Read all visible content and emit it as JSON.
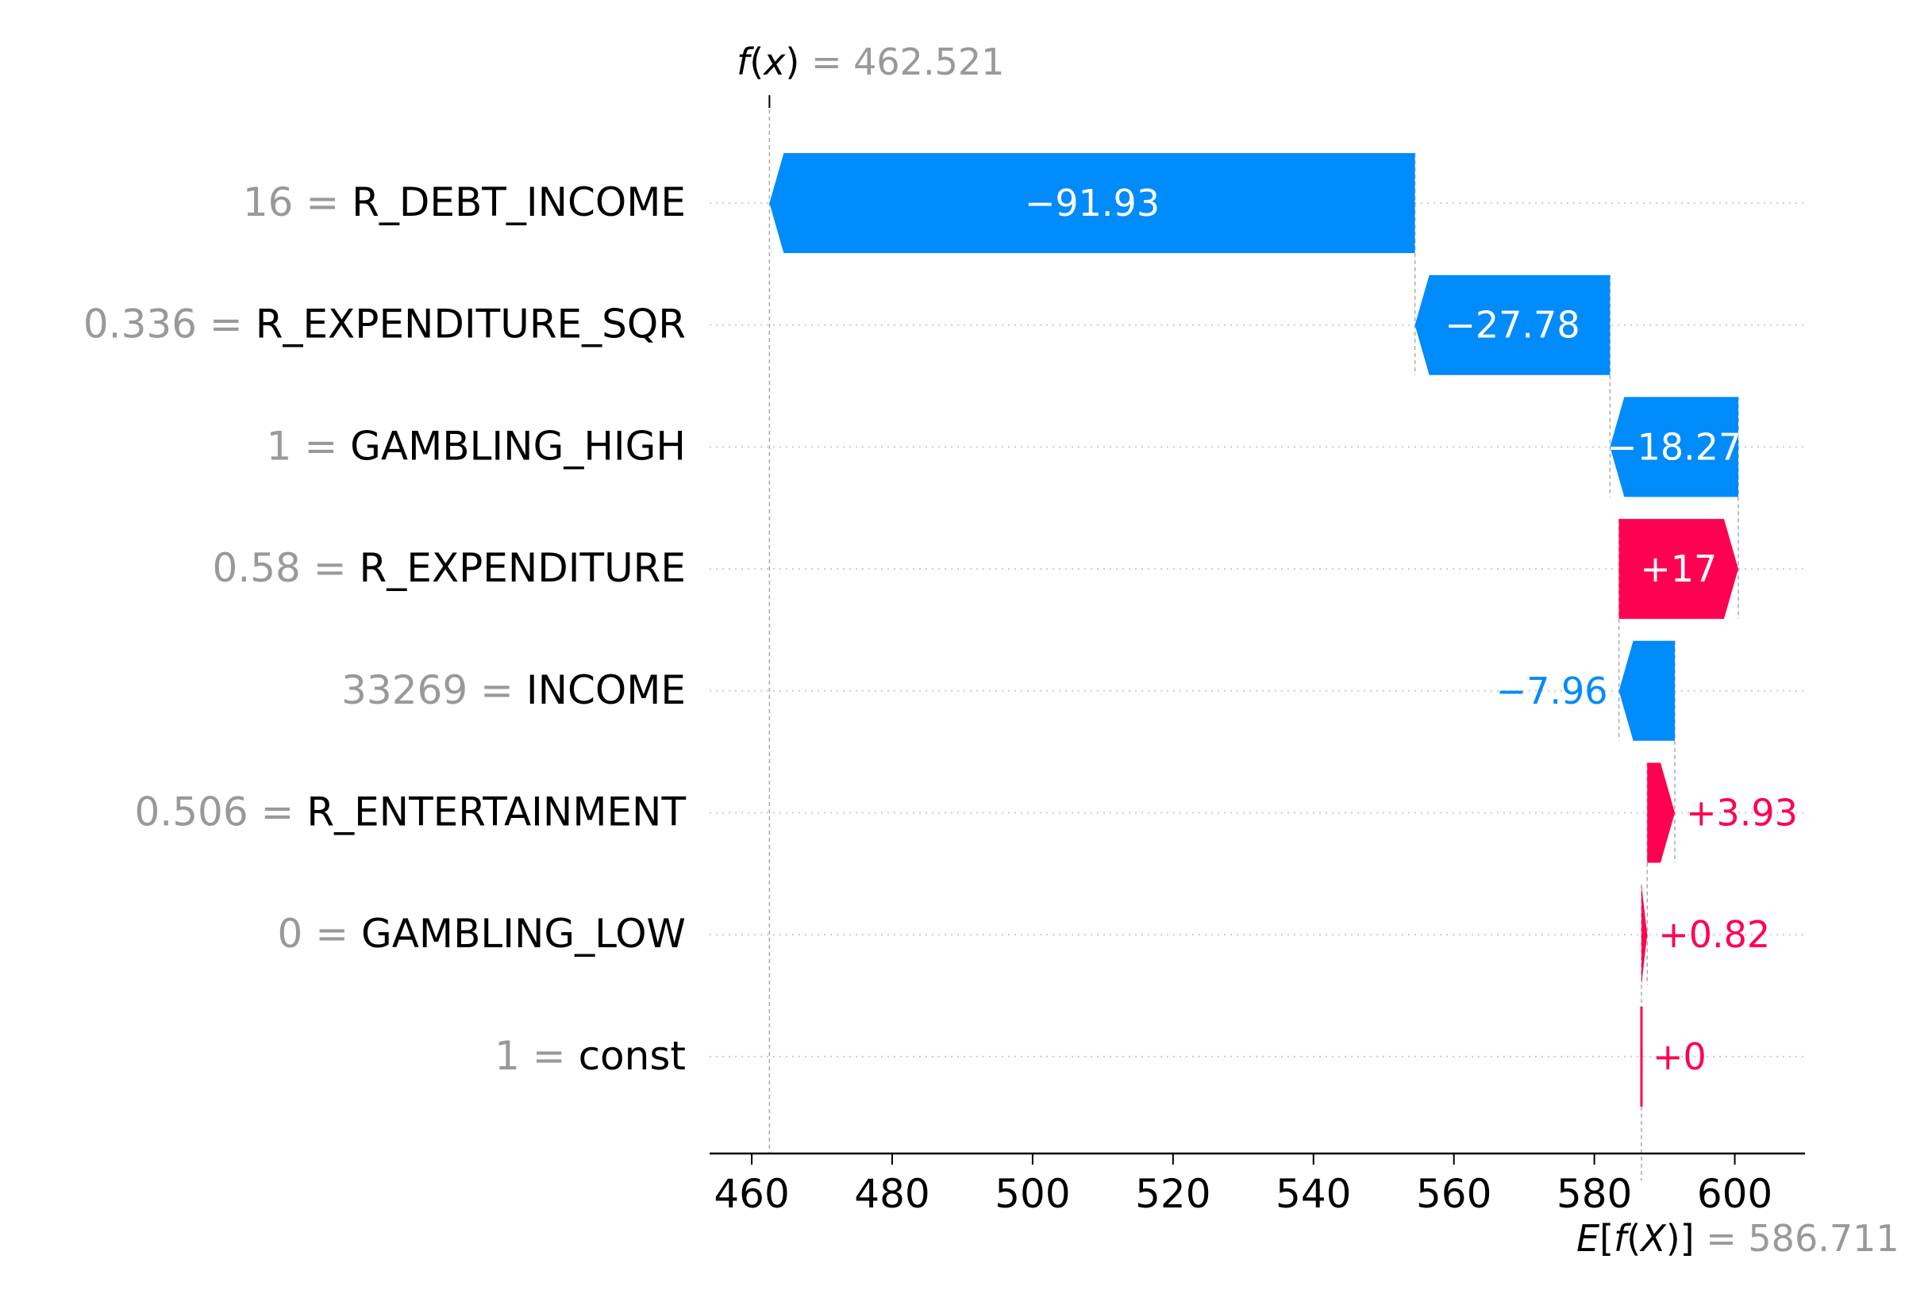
{
  "chart_data": {
    "type": "waterfall",
    "fx": {
      "label_f": "f",
      "label_open": "(",
      "label_x": "x",
      "label_close": ")",
      "eq": " = ",
      "value": "462.521",
      "numeric": 462.521
    },
    "efx": {
      "label_E": "E",
      "label_open": "[",
      "label_f": "f",
      "label_open2": "(",
      "label_X": "X",
      "label_close": ")]",
      "eq": " = ",
      "value": "586.711",
      "numeric": 586.711
    },
    "features": [
      {
        "value": "16",
        "name": "R_DEBT_INCOME",
        "contribution": -91.93,
        "label": "−91.93"
      },
      {
        "value": "0.336",
        "name": "R_EXPENDITURE_SQR",
        "contribution": -27.78,
        "label": "−27.78"
      },
      {
        "value": "1",
        "name": "GAMBLING_HIGH",
        "contribution": -18.27,
        "label": "−18.27"
      },
      {
        "value": "0.58",
        "name": "R_EXPENDITURE",
        "contribution": 17.0,
        "label": "+17"
      },
      {
        "value": "33269",
        "name": "INCOME",
        "contribution": -7.96,
        "label": "−7.96"
      },
      {
        "value": "0.506",
        "name": "R_ENTERTAINMENT",
        "contribution": 3.93,
        "label": "+3.93"
      },
      {
        "value": "0",
        "name": "GAMBLING_LOW",
        "contribution": 0.82,
        "label": "+0.82"
      },
      {
        "value": "1",
        "name": "const",
        "contribution": 0.0,
        "label": "+0"
      }
    ],
    "xticks": [
      460,
      480,
      500,
      520,
      540,
      560,
      580,
      600
    ],
    "xlim": [
      454,
      610
    ],
    "colors": {
      "positive": "#ff0051",
      "negative": "#008bfb",
      "value_gray": "#999999",
      "text": "#000000"
    }
  }
}
